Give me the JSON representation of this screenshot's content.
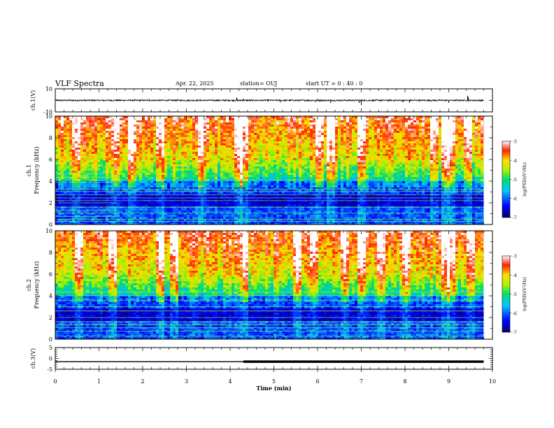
{
  "header": {
    "title": "VLF Spectra",
    "date": "Apr. 22, 2025",
    "station": "station= OUJ",
    "start": "start  UT =   0 : 40 : 0"
  },
  "chart_data": [
    {
      "id": "ch1-waveform",
      "type": "line",
      "ylabel": "ch.1(V)",
      "ylim": [
        -10,
        10
      ],
      "yticks": [
        10,
        -10
      ],
      "xlim": [
        0,
        10
      ],
      "trace_end_min": 9.8,
      "baseline": 0,
      "noise_amplitude": 0.6,
      "spikes": [
        {
          "x": 4.15,
          "y": 2.5
        },
        {
          "x": 4.3,
          "y": 1.6
        },
        {
          "x": 5.15,
          "y": -1.8
        },
        {
          "x": 6.0,
          "y": 1.3
        },
        {
          "x": 6.3,
          "y": -2.2
        },
        {
          "x": 6.95,
          "y": -2.2
        },
        {
          "x": 7.0,
          "y": -4.0
        },
        {
          "x": 7.95,
          "y": -1.7
        },
        {
          "x": 8.1,
          "y": -2.2
        },
        {
          "x": 9.0,
          "y": -2.2
        },
        {
          "x": 9.43,
          "y": 4.0
        },
        {
          "x": 9.45,
          "y": 2.8
        },
        {
          "x": 5.95,
          "y": -1.6
        },
        {
          "x": 2.15,
          "y": 1.4
        }
      ]
    },
    {
      "id": "ch1-spectrogram",
      "type": "heatmap",
      "ylabel": "ch.1",
      "ylabel2": "Frequency (kHz)",
      "ylim": [
        0,
        10
      ],
      "yticks": [
        0,
        2,
        4,
        6,
        8,
        10
      ],
      "xlim": [
        0,
        10
      ],
      "data_end_min": 9.8,
      "color_scale": {
        "label": "log(PSD)(V²/Hz)",
        "range": [
          -7,
          -3
        ],
        "ticks": [
          -3,
          -4,
          -5,
          -6,
          -7
        ]
      },
      "lines_khz_full": [
        0.3,
        0.5,
        1.05,
        1.6,
        2.2,
        2.45,
        2.75,
        3.05,
        3.25
      ],
      "lines_khz_early": [
        0.75,
        1.3,
        2.0,
        3.9,
        4.35,
        4.7
      ],
      "early_end_min": 1.4,
      "bright_events_min": [
        0.45,
        1.35,
        1.7,
        2.35,
        3.3,
        4.15,
        4.3,
        6.0,
        6.3,
        7.0,
        8.65,
        8.9,
        9.0,
        9.4
      ]
    },
    {
      "id": "ch2-spectrogram",
      "type": "heatmap",
      "ylabel": "ch.2",
      "ylabel2": "Frequency (kHz)",
      "ylim": [
        0,
        10
      ],
      "yticks": [
        0,
        2,
        4,
        6,
        8,
        10
      ],
      "xlim": [
        0,
        10
      ],
      "data_end_min": 9.8,
      "color_scale": {
        "label": "log(PSD)(V²/Hz)",
        "range": [
          -7,
          -3
        ],
        "ticks": [
          -3,
          -4,
          -5,
          -6,
          -7
        ]
      },
      "lines_khz_full": [
        0.3,
        0.75,
        1.05,
        1.35,
        1.6,
        2.0,
        2.6,
        3.0,
        3.6,
        4.0,
        4.35
      ],
      "lines_khz_early": [],
      "early_end_min": 0,
      "bright_events_min": [
        0.5,
        1.3,
        2.35,
        2.7,
        4.3,
        5.5,
        5.9,
        6.6,
        7.0,
        7.4,
        8.0,
        8.9,
        9.0,
        9.45
      ]
    },
    {
      "id": "ch3-waveform",
      "type": "line",
      "ylabel": "ch.3(V)",
      "ylim": [
        -5,
        5
      ],
      "yticks": [
        5,
        0,
        -5
      ],
      "xlim": [
        0,
        10
      ],
      "xlabel": "Time (min)",
      "xticks": [
        0,
        1,
        2,
        3,
        4,
        5,
        6,
        7,
        8,
        9,
        10
      ],
      "segments": [
        {
          "x0": 0,
          "x1": 4.3,
          "y": -1.5,
          "weight": "thin"
        },
        {
          "x0": 4.3,
          "x1": 9.8,
          "y": -1.5,
          "weight": "thick"
        }
      ]
    }
  ]
}
